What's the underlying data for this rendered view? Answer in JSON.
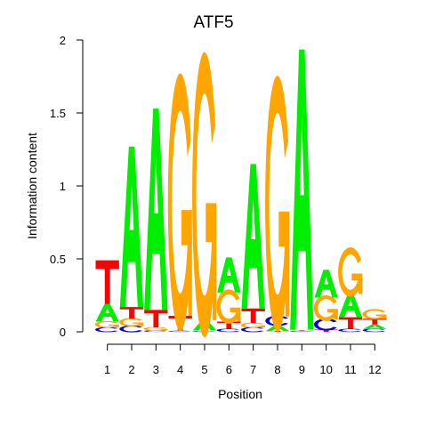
{
  "chart_data": {
    "type": "sequence-logo",
    "title": "ATF5",
    "xlabel": "Position",
    "ylabel": "Information content",
    "ylim": [
      0,
      2
    ],
    "yticks": [
      0,
      0.5,
      1,
      1.5,
      2
    ],
    "ytick_labels": [
      "0",
      "0.5",
      "1",
      "1.5",
      "2"
    ],
    "positions": [
      "1",
      "2",
      "3",
      "4",
      "5",
      "6",
      "7",
      "8",
      "9",
      "10",
      "11",
      "12"
    ],
    "colors": {
      "A": "#00ee00",
      "C": "#0000ee",
      "G": "#ffa500",
      "T": "#ff0000"
    },
    "stacks": [
      [
        {
          "b": "C",
          "h": 0.03
        },
        {
          "b": "G",
          "h": 0.04
        },
        {
          "b": "A",
          "h": 0.12
        },
        {
          "b": "T",
          "h": 0.3
        }
      ],
      [
        {
          "b": "C",
          "h": 0.04
        },
        {
          "b": "G",
          "h": 0.05
        },
        {
          "b": "T",
          "h": 0.08
        },
        {
          "b": "A",
          "h": 1.1
        }
      ],
      [
        {
          "b": "C",
          "h": 0.01
        },
        {
          "b": "G",
          "h": 0.02
        },
        {
          "b": "T",
          "h": 0.12
        },
        {
          "b": "A",
          "h": 1.38
        }
      ],
      [
        {
          "b": "C",
          "h": 0.005
        },
        {
          "b": "A",
          "h": 0.005
        },
        {
          "b": "T",
          "h": 0.1
        },
        {
          "b": "G",
          "h": 1.51
        }
      ],
      [
        {
          "b": "C",
          "h": 0.005
        },
        {
          "b": "T",
          "h": 0.005
        },
        {
          "b": "A",
          "h": 0.07
        },
        {
          "b": "G",
          "h": 1.67
        }
      ],
      [
        {
          "b": "C",
          "h": 0.02
        },
        {
          "b": "T",
          "h": 0.05
        },
        {
          "b": "G",
          "h": 0.2
        },
        {
          "b": "A",
          "h": 0.24
        }
      ],
      [
        {
          "b": "C",
          "h": 0.03
        },
        {
          "b": "G",
          "h": 0.03
        },
        {
          "b": "T",
          "h": 0.1
        },
        {
          "b": "A",
          "h": 0.99
        }
      ],
      [
        {
          "b": "T",
          "h": 0.005
        },
        {
          "b": "A",
          "h": 0.04
        },
        {
          "b": "C",
          "h": 0.06
        },
        {
          "b": "G",
          "h": 1.5
        }
      ],
      [
        {
          "b": "C",
          "h": 0.005
        },
        {
          "b": "T",
          "h": 0.005
        },
        {
          "b": "G",
          "h": 0.005
        },
        {
          "b": "A",
          "h": 1.92
        }
      ],
      [
        {
          "b": "T",
          "h": 0.015
        },
        {
          "b": "C",
          "h": 0.07
        },
        {
          "b": "G",
          "h": 0.15
        },
        {
          "b": "A",
          "h": 0.19
        }
      ],
      [
        {
          "b": "C",
          "h": 0.02
        },
        {
          "b": "T",
          "h": 0.08
        },
        {
          "b": "A",
          "h": 0.16
        },
        {
          "b": "G",
          "h": 0.29
        }
      ],
      [
        {
          "b": "C",
          "h": 0.02
        },
        {
          "b": "A",
          "h": 0.03
        },
        {
          "b": "T",
          "h": 0.04
        },
        {
          "b": "G",
          "h": 0.06
        }
      ]
    ]
  }
}
